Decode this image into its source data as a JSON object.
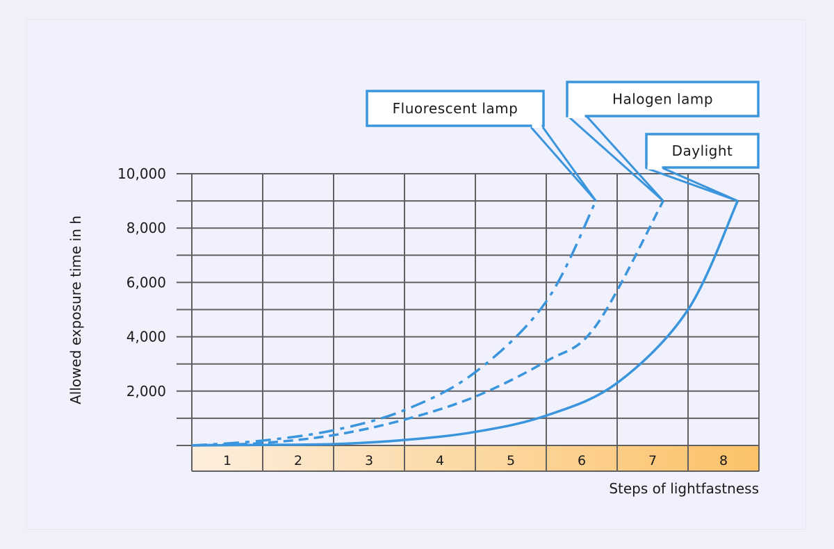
{
  "chart_data": {
    "type": "line",
    "xlabel": "Steps of lightfastness",
    "ylabel": "Allowed exposure time in h",
    "categories": [
      "1",
      "2",
      "3",
      "4",
      "5",
      "6",
      "7",
      "8"
    ],
    "xlim": [
      0,
      8
    ],
    "ylim": [
      0,
      10000
    ],
    "yticks": [
      2000,
      4000,
      6000,
      8000,
      10000
    ],
    "ytick_labels": [
      "2,000",
      "4,000",
      "6,000",
      "8,000",
      "10,000"
    ],
    "grid": true,
    "series": [
      {
        "name": "Fluorescent lamp",
        "style": "dash-dot",
        "x": [
          0,
          1,
          2,
          3,
          4,
          5,
          5.7
        ],
        "y": [
          0,
          180,
          560,
          1300,
          2700,
          5300,
          9000
        ]
      },
      {
        "name": "Halogen lamp",
        "style": "dashed",
        "x": [
          0,
          1,
          2,
          3,
          4,
          5,
          5.7,
          6.65
        ],
        "y": [
          0,
          90,
          380,
          950,
          1800,
          3100,
          4400,
          9000
        ]
      },
      {
        "name": "Daylight",
        "style": "solid",
        "x": [
          0,
          1,
          2,
          3,
          4,
          5,
          6,
          7,
          7.7
        ],
        "y": [
          0,
          20,
          50,
          200,
          500,
          1100,
          2300,
          5000,
          9000
        ]
      }
    ],
    "colors": {
      "line": "#3a95dc",
      "grid": "#606060",
      "step_gradient_start": "#fdeedd",
      "step_gradient_end": "#fbc268"
    }
  }
}
